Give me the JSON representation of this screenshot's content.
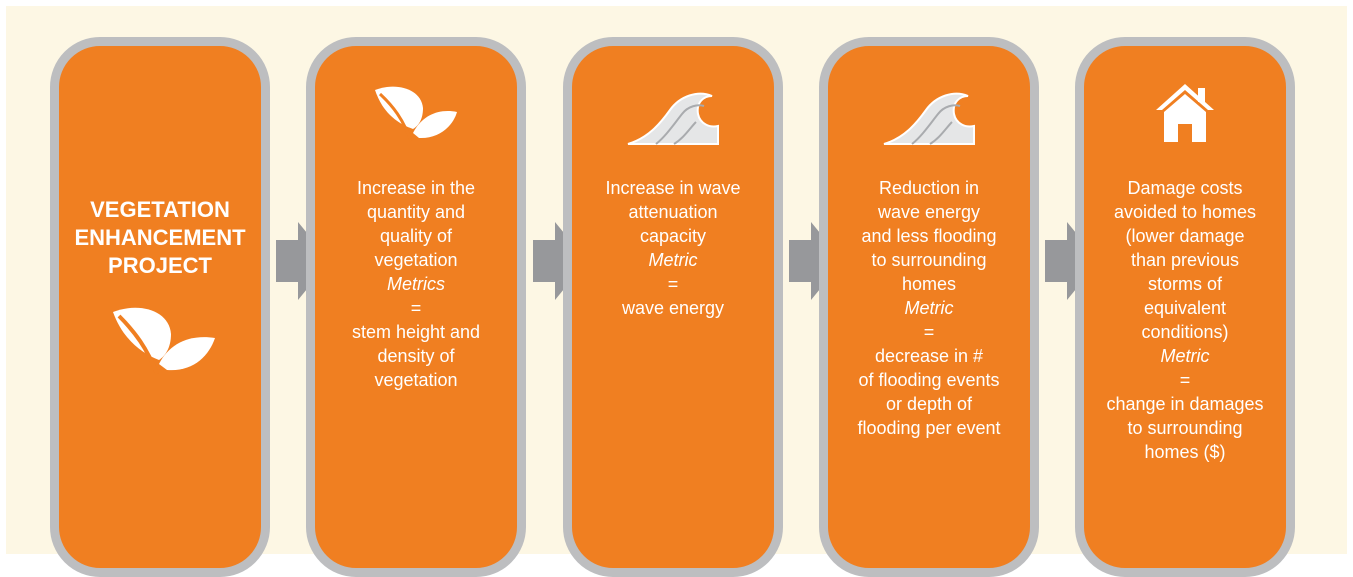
{
  "colors": {
    "card": "#f07f21",
    "border": "#bdbec0",
    "arrow": "#97989b",
    "background": "#fdf7e4",
    "text": "#ffffff"
  },
  "cards": [
    {
      "title": "VEGETATION\nENHANCEMENT\nPROJECT",
      "icon": "leaf-icon"
    },
    {
      "icon": "leaf-icon",
      "description": "Increase in the\nquantity and\nquality of\nvegetation",
      "metric_label": "Metrics",
      "equals": "=",
      "metric_value": "stem height and\ndensity of\nvegetation"
    },
    {
      "icon": "wave-icon",
      "description": "Increase in wave\nattenuation\ncapacity",
      "metric_label": "Metric",
      "equals": "=",
      "metric_value": "wave energy"
    },
    {
      "icon": "wave-icon",
      "description": "Reduction in\nwave energy\nand less flooding\nto surrounding\nhomes",
      "metric_label": "Metric",
      "equals": "=",
      "metric_value": "decrease in #\nof flooding events\nor depth of\nflooding per event"
    },
    {
      "icon": "home-icon",
      "description": "Damage costs\navoided to homes\n(lower damage\nthan previous\nstorms of\nequivalent\nconditions)",
      "metric_label": "Metric",
      "equals": "=",
      "metric_value": "change in damages\nto surrounding\nhomes ($)"
    }
  ]
}
